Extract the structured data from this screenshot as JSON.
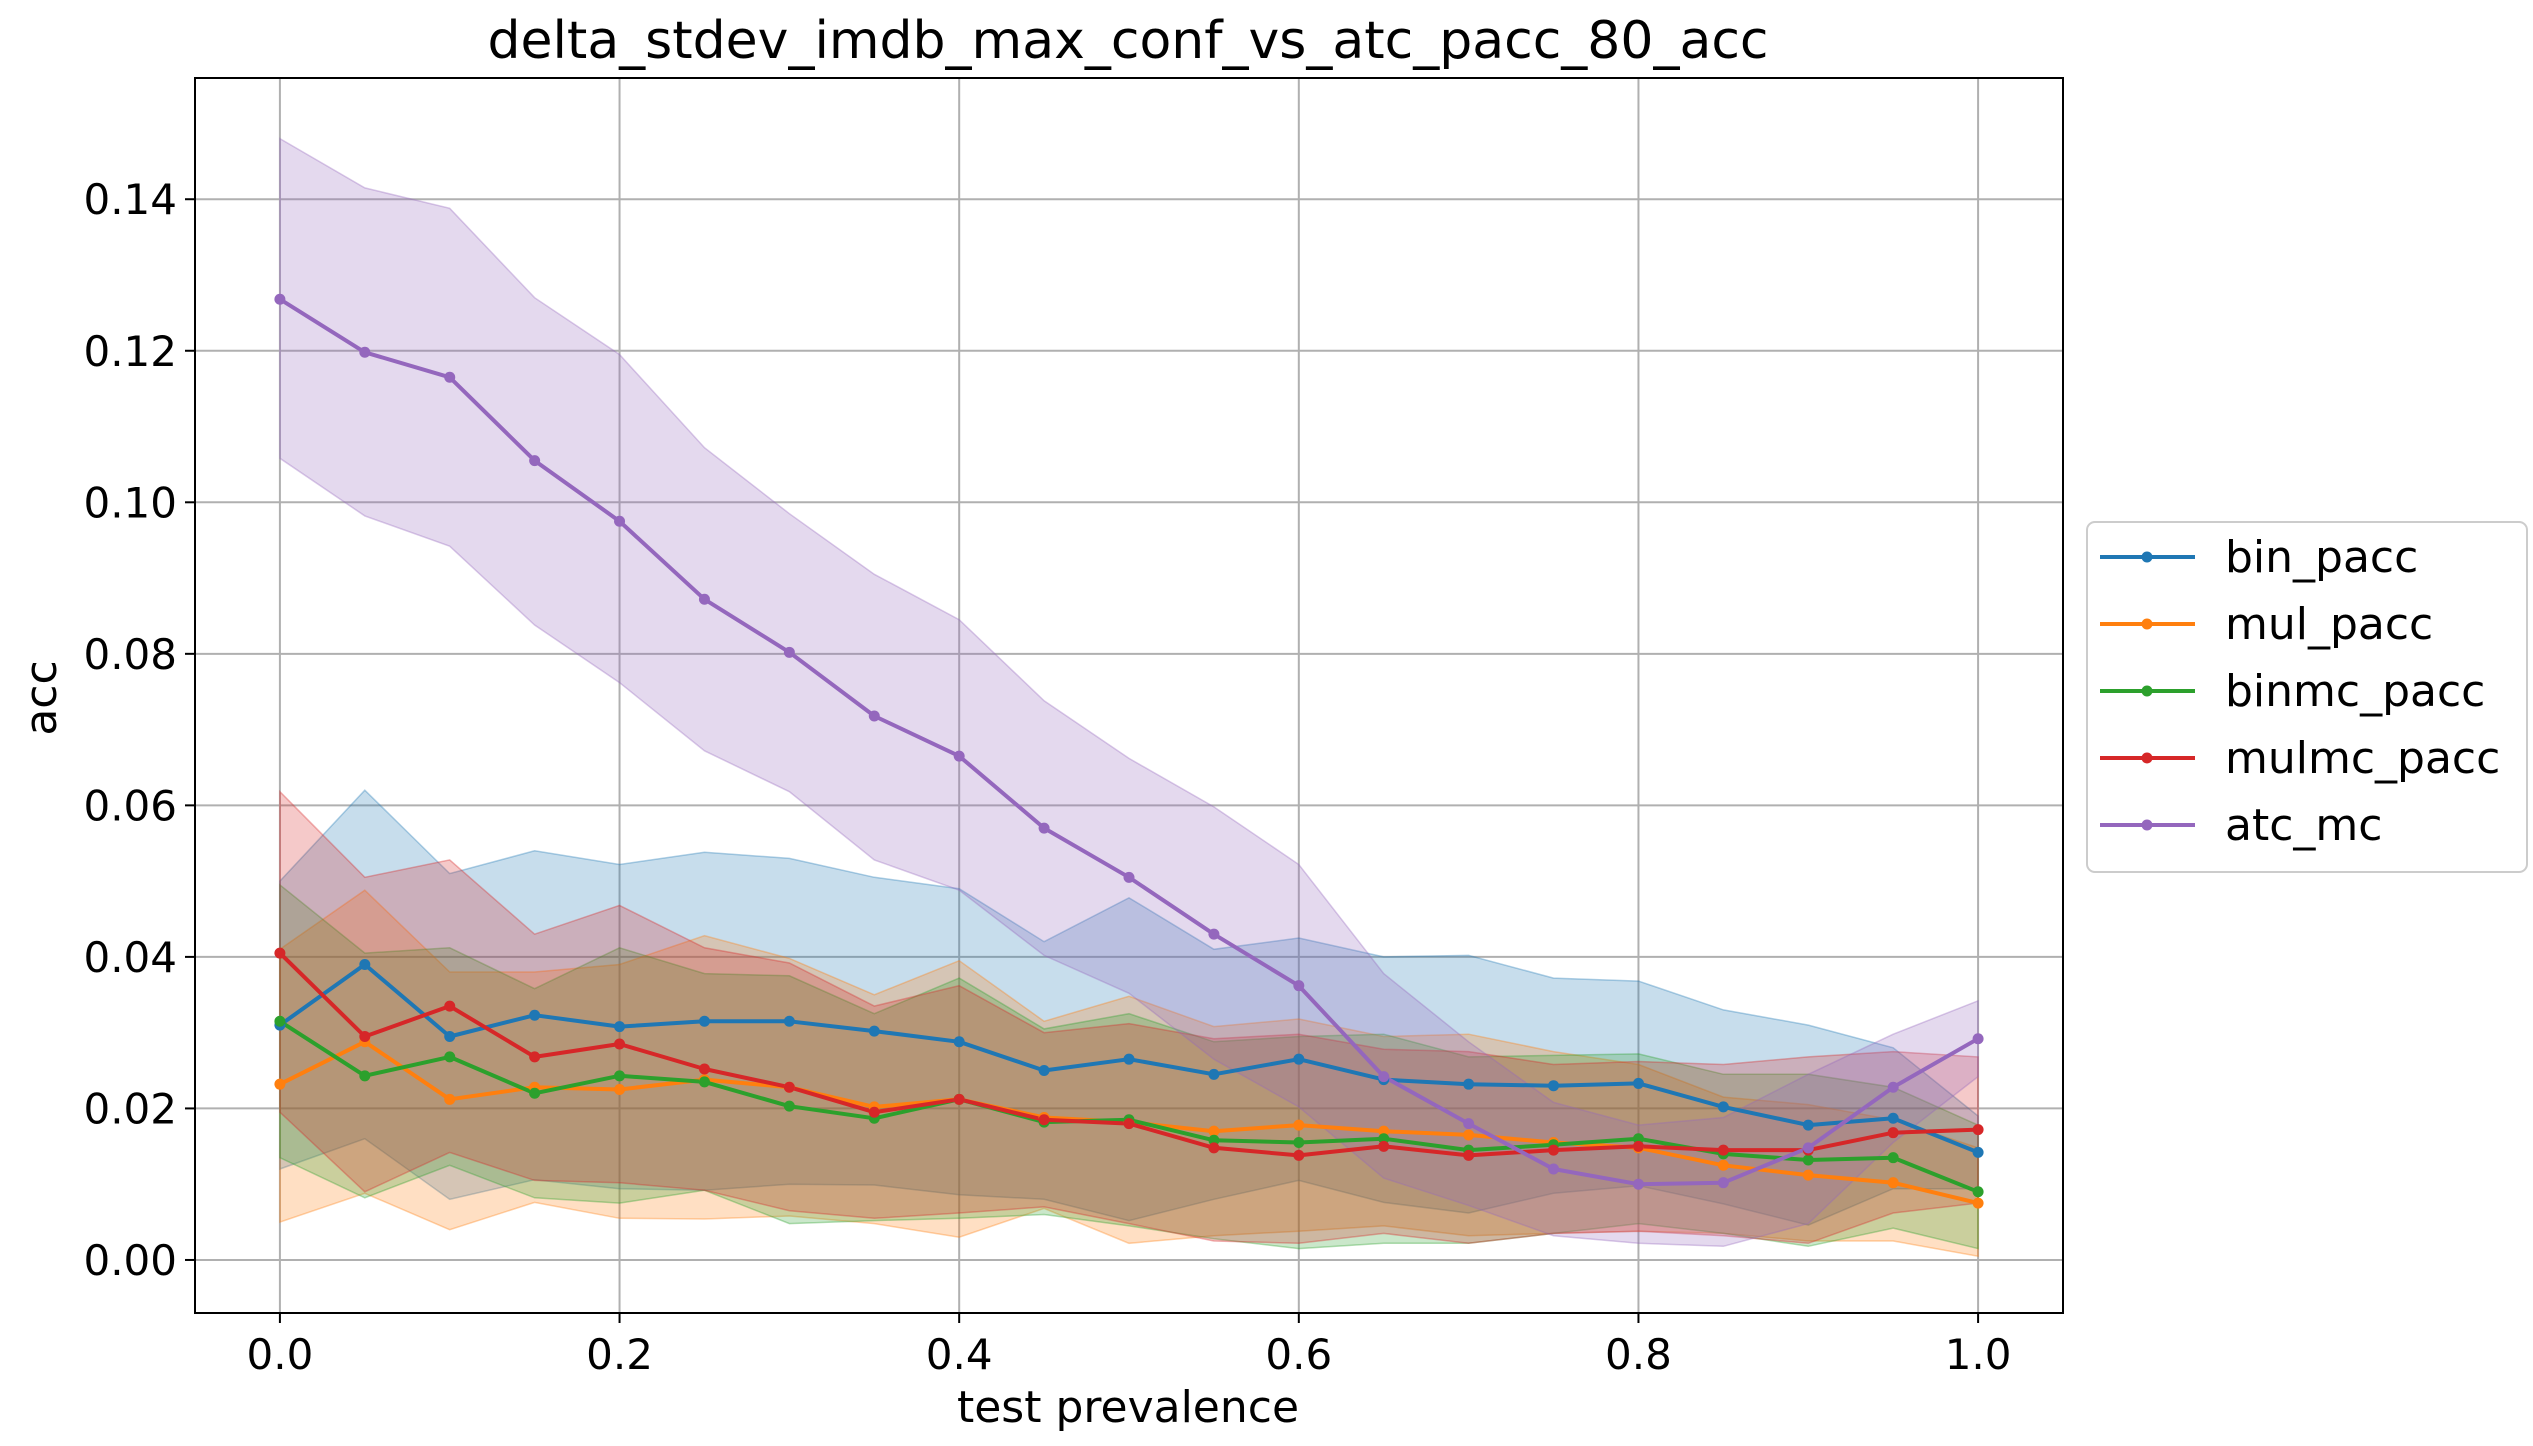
{
  "chart_data": {
    "type": "line",
    "title": "delta_stdev_imdb_max_conf_vs_atc_pacc_80_acc",
    "xlabel": "test prevalence",
    "ylabel": "acc",
    "xlim": [
      -0.05,
      1.05
    ],
    "ylim": [
      -0.007,
      0.156
    ],
    "xticks": [
      0.0,
      0.2,
      0.4,
      0.6,
      0.8,
      1.0
    ],
    "xtick_labels": [
      "0.0",
      "0.2",
      "0.4",
      "0.6",
      "0.8",
      "1.0"
    ],
    "yticks": [
      0.0,
      0.02,
      0.04,
      0.06,
      0.08,
      0.1,
      0.12,
      0.14
    ],
    "ytick_labels": [
      "0.00",
      "0.02",
      "0.04",
      "0.06",
      "0.08",
      "0.10",
      "0.12",
      "0.14"
    ],
    "grid": true,
    "legend_placement": "right, outside",
    "x": [
      0.0,
      0.05,
      0.1,
      0.15,
      0.2,
      0.25,
      0.3,
      0.35,
      0.4,
      0.45,
      0.5,
      0.55,
      0.6,
      0.65,
      0.7,
      0.75,
      0.8,
      0.85,
      0.9,
      0.95,
      1.0
    ],
    "series": [
      {
        "name": "bin_pacc",
        "color": "#1f77b4",
        "values": [
          0.031,
          0.039,
          0.0295,
          0.0323,
          0.0308,
          0.0315,
          0.0315,
          0.0302,
          0.0288,
          0.025,
          0.0265,
          0.0245,
          0.0265,
          0.0238,
          0.0232,
          0.023,
          0.0233,
          0.0202,
          0.0178,
          0.0187,
          0.0142
        ],
        "upper": [
          0.05,
          0.062,
          0.051,
          0.054,
          0.0522,
          0.0538,
          0.053,
          0.0505,
          0.049,
          0.042,
          0.0478,
          0.041,
          0.0425,
          0.04,
          0.0402,
          0.0372,
          0.0368,
          0.033,
          0.031,
          0.028,
          0.019
        ],
        "lower": [
          0.012,
          0.016,
          0.008,
          0.0106,
          0.0094,
          0.0092,
          0.01,
          0.0099,
          0.0086,
          0.008,
          0.0052,
          0.008,
          0.0105,
          0.0076,
          0.0062,
          0.0088,
          0.0098,
          0.0074,
          0.0046,
          0.0094,
          0.0094
        ]
      },
      {
        "name": "mul_pacc",
        "color": "#ff7f0e",
        "values": [
          0.0232,
          0.0288,
          0.0212,
          0.0228,
          0.0225,
          0.0238,
          0.0228,
          0.0202,
          0.0212,
          0.0188,
          0.0182,
          0.017,
          0.0178,
          0.017,
          0.0165,
          0.0155,
          0.0148,
          0.0125,
          0.0112,
          0.0102,
          0.0075
        ],
        "upper": [
          0.041,
          0.0488,
          0.038,
          0.038,
          0.039,
          0.0428,
          0.0398,
          0.035,
          0.0395,
          0.0315,
          0.0348,
          0.0308,
          0.0318,
          0.0295,
          0.0298,
          0.0275,
          0.0258,
          0.0215,
          0.0205,
          0.0185,
          0.0148
        ],
        "lower": [
          0.005,
          0.0088,
          0.004,
          0.0076,
          0.0055,
          0.0054,
          0.0058,
          0.0048,
          0.003,
          0.0068,
          0.0022,
          0.0032,
          0.0038,
          0.0045,
          0.0032,
          0.0035,
          0.0038,
          0.0035,
          0.0025,
          0.0025,
          0.0005
        ]
      },
      {
        "name": "binmc_pacc",
        "color": "#2ca02c",
        "values": [
          0.0315,
          0.0243,
          0.0268,
          0.022,
          0.0243,
          0.0235,
          0.0203,
          0.0187,
          0.0212,
          0.0182,
          0.0185,
          0.0158,
          0.0155,
          0.016,
          0.0145,
          0.0152,
          0.016,
          0.014,
          0.0132,
          0.0135,
          0.009
        ],
        "upper": [
          0.0495,
          0.0405,
          0.0412,
          0.0358,
          0.0412,
          0.0378,
          0.0375,
          0.0325,
          0.0372,
          0.0305,
          0.0325,
          0.0288,
          0.0295,
          0.0298,
          0.0268,
          0.027,
          0.0272,
          0.0245,
          0.0245,
          0.0228,
          0.0178
        ],
        "lower": [
          0.0135,
          0.0082,
          0.0125,
          0.0082,
          0.0075,
          0.0092,
          0.0048,
          0.0052,
          0.0055,
          0.006,
          0.0045,
          0.0028,
          0.0015,
          0.0022,
          0.0022,
          0.0035,
          0.0048,
          0.0035,
          0.0018,
          0.0042,
          0.0015
        ]
      },
      {
        "name": "mulmc_pacc",
        "color": "#d62728",
        "values": [
          0.0405,
          0.0295,
          0.0335,
          0.0268,
          0.0285,
          0.0252,
          0.0228,
          0.0195,
          0.0212,
          0.0185,
          0.018,
          0.0148,
          0.0138,
          0.015,
          0.0138,
          0.0145,
          0.015,
          0.0145,
          0.0145,
          0.0168,
          0.0172
        ],
        "upper": [
          0.0618,
          0.0505,
          0.0528,
          0.043,
          0.0468,
          0.0412,
          0.0392,
          0.0335,
          0.0362,
          0.03,
          0.0312,
          0.0292,
          0.0298,
          0.0278,
          0.0275,
          0.0258,
          0.0262,
          0.0258,
          0.0268,
          0.0275,
          0.0268
        ],
        "lower": [
          0.0195,
          0.009,
          0.0142,
          0.0105,
          0.0102,
          0.0092,
          0.0065,
          0.0055,
          0.0062,
          0.007,
          0.0048,
          0.0025,
          0.0022,
          0.0035,
          0.0022,
          0.0035,
          0.0038,
          0.0032,
          0.0022,
          0.0062,
          0.0075
        ]
      },
      {
        "name": "atc_mc",
        "color": "#9467bd",
        "values": [
          0.1268,
          0.1198,
          0.1165,
          0.1055,
          0.0975,
          0.0872,
          0.0802,
          0.0718,
          0.0665,
          0.057,
          0.0505,
          0.043,
          0.0362,
          0.0242,
          0.018,
          0.012,
          0.01,
          0.0102,
          0.0148,
          0.0228,
          0.0292
        ],
        "upper": [
          0.148,
          0.1415,
          0.1388,
          0.127,
          0.1195,
          0.1072,
          0.0985,
          0.0905,
          0.0845,
          0.0738,
          0.0662,
          0.0598,
          0.0522,
          0.0378,
          0.0288,
          0.0208,
          0.0178,
          0.0188,
          0.0245,
          0.0298,
          0.0342
        ],
        "lower": [
          0.1058,
          0.0982,
          0.0942,
          0.0838,
          0.0762,
          0.0672,
          0.0618,
          0.0528,
          0.0488,
          0.0402,
          0.0352,
          0.0265,
          0.0202,
          0.0108,
          0.0072,
          0.0032,
          0.0022,
          0.0018,
          0.0048,
          0.0155,
          0.0242
        ]
      }
    ]
  }
}
